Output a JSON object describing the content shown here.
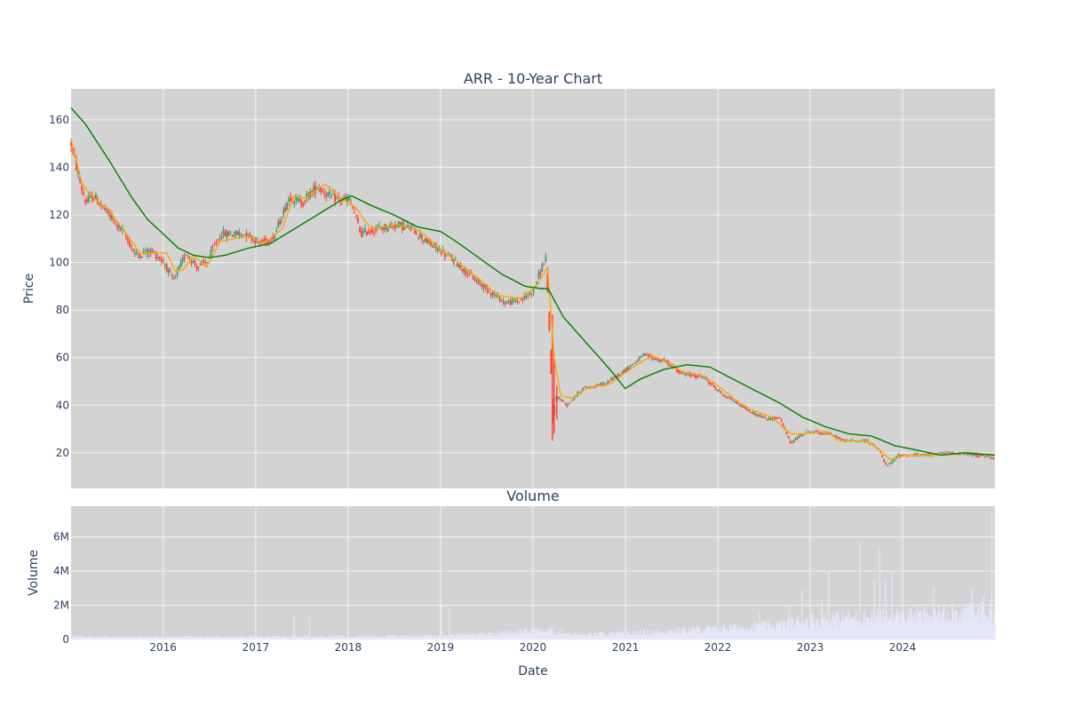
{
  "colors": {
    "plot_bg": "#d3d3d3",
    "grid": "#f2f2f2",
    "candle_up": "#3d9970",
    "candle_down": "#ff4136",
    "ma_fast": "#ffa500",
    "ma_slow": "#008000",
    "volume_bar": "#e6e6fa",
    "text": "#2a3f5f"
  },
  "chart_data": [
    {
      "type": "line",
      "title": "ARR - 10-Year Chart",
      "xlabel": "",
      "ylabel": "Price",
      "xlim": [
        "2015-01-02",
        "2024-12-31"
      ],
      "ylim": [
        5,
        173
      ],
      "y_ticks": [
        20,
        40,
        60,
        80,
        100,
        120,
        140,
        160
      ],
      "grid": true,
      "candlestick": {
        "name": "ARR",
        "anchors": [
          [
            "2015-01-02",
            150
          ],
          [
            "2015-02-01",
            136
          ],
          [
            "2015-03-01",
            125
          ],
          [
            "2015-04-01",
            128
          ],
          [
            "2015-06-01",
            120
          ],
          [
            "2015-08-01",
            112
          ],
          [
            "2015-09-15",
            103
          ],
          [
            "2015-11-15",
            105
          ],
          [
            "2016-01-05",
            100
          ],
          [
            "2016-02-10",
            92
          ],
          [
            "2016-04-01",
            104
          ],
          [
            "2016-05-15",
            98
          ],
          [
            "2016-06-20",
            100
          ],
          [
            "2016-08-15",
            112
          ],
          [
            "2016-12-01",
            112
          ],
          [
            "2017-01-15",
            108
          ],
          [
            "2017-03-15",
            111
          ],
          [
            "2017-05-15",
            128
          ],
          [
            "2017-07-01",
            125
          ],
          [
            "2017-09-01",
            132
          ],
          [
            "2017-11-01",
            127
          ],
          [
            "2018-01-10",
            126
          ],
          [
            "2018-02-20",
            112
          ],
          [
            "2018-04-15",
            114
          ],
          [
            "2018-07-15",
            116
          ],
          [
            "2018-09-15",
            114
          ],
          [
            "2018-11-15",
            108
          ],
          [
            "2019-01-15",
            104
          ],
          [
            "2019-03-15",
            99
          ],
          [
            "2019-05-15",
            93
          ],
          [
            "2019-07-15",
            88
          ],
          [
            "2019-09-15",
            83
          ],
          [
            "2019-11-15",
            84
          ],
          [
            "2020-01-01",
            88
          ],
          [
            "2020-02-10",
            99
          ],
          [
            "2020-02-21",
            102
          ],
          [
            "2020-03-10",
            62
          ],
          [
            "2020-03-20",
            33
          ],
          [
            "2020-04-01",
            44
          ],
          [
            "2020-05-15",
            40
          ],
          [
            "2020-07-15",
            47
          ],
          [
            "2020-10-15",
            49
          ],
          [
            "2021-01-15",
            56
          ],
          [
            "2021-03-15",
            61
          ],
          [
            "2021-06-15",
            58
          ],
          [
            "2021-08-15",
            53
          ],
          [
            "2021-11-01",
            52
          ],
          [
            "2022-01-15",
            45
          ],
          [
            "2022-03-15",
            41
          ],
          [
            "2022-05-15",
            37
          ],
          [
            "2022-07-15",
            34
          ],
          [
            "2022-09-01",
            35
          ],
          [
            "2022-10-15",
            24
          ],
          [
            "2022-12-15",
            29
          ],
          [
            "2023-03-15",
            28
          ],
          [
            "2023-05-15",
            25
          ],
          [
            "2023-08-15",
            25
          ],
          [
            "2023-10-01",
            21
          ],
          [
            "2023-10-30",
            14
          ],
          [
            "2023-12-15",
            19
          ],
          [
            "2024-03-15",
            19
          ],
          [
            "2024-07-01",
            20
          ],
          [
            "2024-10-15",
            19
          ],
          [
            "2024-12-31",
            18
          ]
        ]
      },
      "series": [
        {
          "role": "fast",
          "points": [
            [
              "2015-01-02",
              152
            ],
            [
              "2015-02-15",
              133
            ],
            [
              "2015-04-01",
              127
            ],
            [
              "2015-06-01",
              122
            ],
            [
              "2015-08-01",
              113
            ],
            [
              "2015-10-01",
              104
            ],
            [
              "2015-12-01",
              104
            ],
            [
              "2016-01-15",
              104
            ],
            [
              "2016-02-20",
              96
            ],
            [
              "2016-03-20",
              97
            ],
            [
              "2016-05-01",
              103
            ],
            [
              "2016-06-20",
              98
            ],
            [
              "2016-08-15",
              109
            ],
            [
              "2016-12-01",
              111
            ],
            [
              "2017-02-01",
              108
            ],
            [
              "2017-04-15",
              114
            ],
            [
              "2017-06-01",
              128
            ],
            [
              "2017-07-15",
              127
            ],
            [
              "2017-10-01",
              133
            ],
            [
              "2017-12-01",
              127
            ],
            [
              "2018-02-01",
              123
            ],
            [
              "2018-04-01",
              114
            ],
            [
              "2018-07-15",
              116
            ],
            [
              "2018-10-15",
              113
            ],
            [
              "2018-12-15",
              107
            ],
            [
              "2019-02-15",
              102
            ],
            [
              "2019-04-15",
              97
            ],
            [
              "2019-06-15",
              92
            ],
            [
              "2019-08-15",
              86
            ],
            [
              "2019-11-15",
              85
            ],
            [
              "2020-01-15",
              90
            ],
            [
              "2020-02-28",
              98
            ],
            [
              "2020-03-25",
              60
            ],
            [
              "2020-04-20",
              44
            ],
            [
              "2020-06-01",
              43
            ],
            [
              "2020-08-01",
              47
            ],
            [
              "2020-11-01",
              49
            ],
            [
              "2021-02-01",
              56
            ],
            [
              "2021-04-15",
              61
            ],
            [
              "2021-06-15",
              58
            ],
            [
              "2021-08-15",
              54
            ],
            [
              "2021-11-15",
              52
            ],
            [
              "2022-01-15",
              47
            ],
            [
              "2022-03-15",
              42
            ],
            [
              "2022-05-15",
              38
            ],
            [
              "2022-08-01",
              35
            ],
            [
              "2022-10-15",
              28
            ],
            [
              "2022-12-15",
              28
            ],
            [
              "2023-03-01",
              29
            ],
            [
              "2023-05-01",
              25
            ],
            [
              "2023-08-15",
              25
            ],
            [
              "2023-10-15",
              20
            ],
            [
              "2023-11-15",
              17
            ],
            [
              "2024-01-15",
              19
            ],
            [
              "2024-06-01",
              19
            ],
            [
              "2024-09-15",
              20
            ],
            [
              "2024-12-31",
              19
            ]
          ]
        },
        {
          "role": "slow",
          "points": [
            [
              "2015-01-02",
              165
            ],
            [
              "2015-03-01",
              158
            ],
            [
              "2015-06-01",
              143
            ],
            [
              "2015-09-01",
              127
            ],
            [
              "2015-11-01",
              118
            ],
            [
              "2016-01-01",
              112
            ],
            [
              "2016-03-01",
              106
            ],
            [
              "2016-05-01",
              103
            ],
            [
              "2016-07-01",
              102
            ],
            [
              "2016-09-01",
              103
            ],
            [
              "2016-12-01",
              106
            ],
            [
              "2017-03-01",
              108
            ],
            [
              "2017-06-01",
              114
            ],
            [
              "2017-09-01",
              120
            ],
            [
              "2017-12-01",
              126
            ],
            [
              "2018-01-15",
              128
            ],
            [
              "2018-04-01",
              124
            ],
            [
              "2018-07-01",
              120
            ],
            [
              "2018-10-01",
              115
            ],
            [
              "2019-01-01",
              113
            ],
            [
              "2019-03-01",
              109
            ],
            [
              "2019-06-01",
              102
            ],
            [
              "2019-09-01",
              95
            ],
            [
              "2019-12-01",
              90
            ],
            [
              "2020-02-01",
              89
            ],
            [
              "2020-03-01",
              89
            ],
            [
              "2020-05-01",
              77
            ],
            [
              "2020-08-01",
              66
            ],
            [
              "2020-11-01",
              55
            ],
            [
              "2020-12-31",
              47
            ],
            [
              "2021-03-01",
              51
            ],
            [
              "2021-06-01",
              55
            ],
            [
              "2021-09-01",
              57
            ],
            [
              "2021-12-01",
              56
            ],
            [
              "2022-03-01",
              51
            ],
            [
              "2022-06-01",
              46
            ],
            [
              "2022-09-01",
              41
            ],
            [
              "2022-12-01",
              35
            ],
            [
              "2023-03-01",
              31
            ],
            [
              "2023-06-01",
              28
            ],
            [
              "2023-09-01",
              27
            ],
            [
              "2023-12-01",
              23
            ],
            [
              "2024-03-01",
              21
            ],
            [
              "2024-06-01",
              19
            ],
            [
              "2024-09-01",
              20
            ],
            [
              "2024-12-31",
              19
            ]
          ]
        }
      ]
    },
    {
      "type": "bar",
      "title": "Volume",
      "xlabel": "Date",
      "ylabel": "Volume",
      "xlim": [
        "2015-01-02",
        "2024-12-31"
      ],
      "ylim": [
        0,
        7800000
      ],
      "y_ticks": [
        0,
        2000000,
        4000000,
        6000000
      ],
      "y_tick_labels": [
        "0",
        "2M",
        "4M",
        "6M"
      ],
      "x_ticks": [
        "2016-01-01",
        "2017-01-01",
        "2018-01-01",
        "2019-01-01",
        "2020-01-01",
        "2021-01-01",
        "2022-01-01",
        "2023-01-01",
        "2024-01-01"
      ],
      "x_tick_labels": [
        "2016",
        "2017",
        "2018",
        "2019",
        "2020",
        "2021",
        "2022",
        "2023",
        "2024"
      ],
      "grid": true,
      "baseline": [
        [
          "2015-01-02",
          150000
        ],
        [
          "2017-01-01",
          150000
        ],
        [
          "2019-01-01",
          200000
        ],
        [
          "2020-03-01",
          500000
        ],
        [
          "2020-07-01",
          250000
        ],
        [
          "2021-01-01",
          350000
        ],
        [
          "2022-01-01",
          600000
        ],
        [
          "2022-09-01",
          800000
        ],
        [
          "2023-01-01",
          1100000
        ],
        [
          "2024-01-01",
          1300000
        ],
        [
          "2024-12-31",
          1600000
        ]
      ],
      "spikes": [
        [
          "2017-06-01",
          1400000
        ],
        [
          "2017-08-01",
          1300000
        ],
        [
          "2019-01-05",
          2000000
        ],
        [
          "2019-02-05",
          1800000
        ],
        [
          "2022-06-15",
          1700000
        ],
        [
          "2022-10-10",
          2000000
        ],
        [
          "2022-12-01",
          2900000
        ],
        [
          "2023-02-15",
          2400000
        ],
        [
          "2023-03-15",
          4000000
        ],
        [
          "2023-07-15",
          5600000
        ],
        [
          "2023-09-10",
          3500000
        ],
        [
          "2023-10-01",
          5300000
        ],
        [
          "2023-10-25",
          3600000
        ],
        [
          "2023-11-20",
          4000000
        ],
        [
          "2024-05-01",
          3000000
        ],
        [
          "2024-07-15",
          2200000
        ],
        [
          "2024-10-01",
          3000000
        ],
        [
          "2024-11-15",
          2500000
        ],
        [
          "2024-12-20",
          7400000
        ]
      ]
    }
  ]
}
